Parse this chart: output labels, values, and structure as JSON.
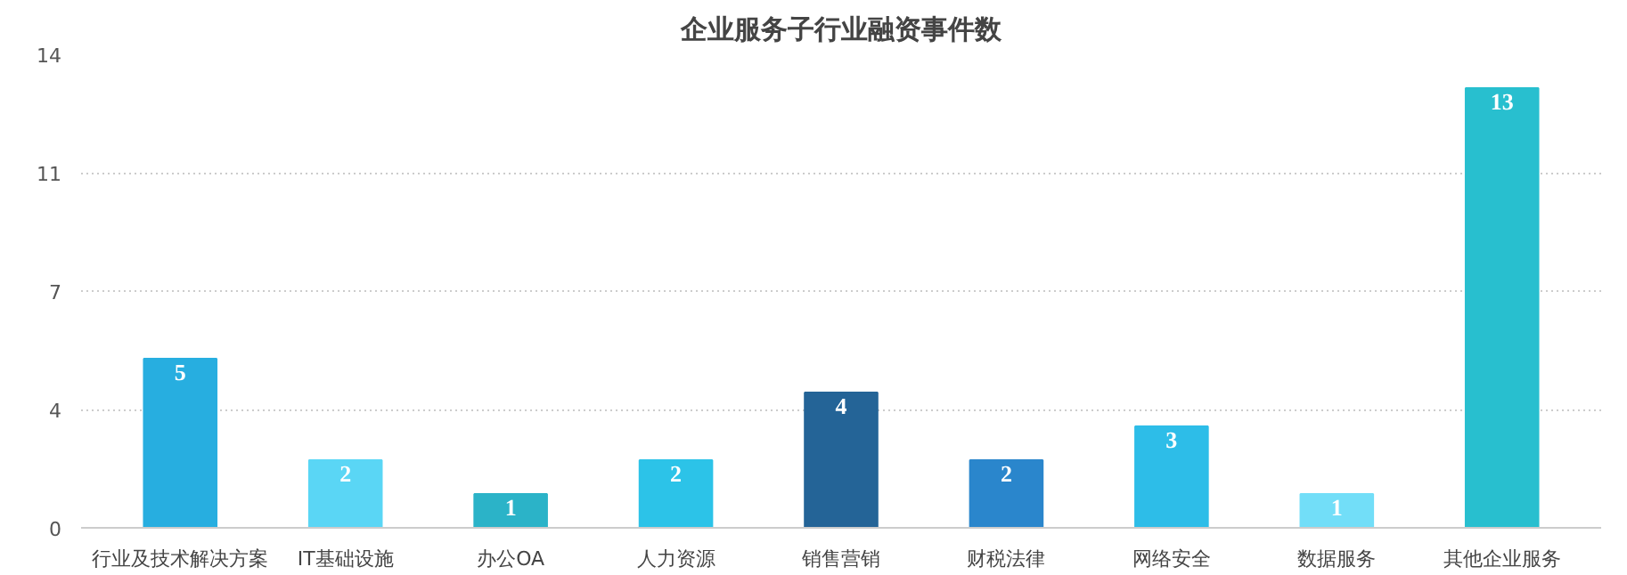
{
  "chart_data": {
    "type": "bar",
    "title": "企业服务子行业融资事件数",
    "categories": [
      "行业及技术解决方案",
      "IT基础设施",
      "办公OA",
      "人力资源",
      "销售营销",
      "财税法律",
      "网络安全",
      "数据服务",
      "其他企业服务"
    ],
    "values": [
      5,
      2,
      1,
      2,
      4,
      2,
      3,
      1,
      13
    ],
    "colors": [
      "#27aee0",
      "#5ad6f5",
      "#2bb3c8",
      "#2cc3e8",
      "#246497",
      "#2a86cc",
      "#2dbde8",
      "#72def8",
      "#28bfcf"
    ],
    "ylim": [
      0,
      14
    ],
    "yticks": [
      0,
      {
        "value": 3.5,
        "label": "4"
      },
      7,
      {
        "value": 10.5,
        "label": "11"
      },
      14
    ],
    "grid": "y",
    "data_labels": true
  }
}
